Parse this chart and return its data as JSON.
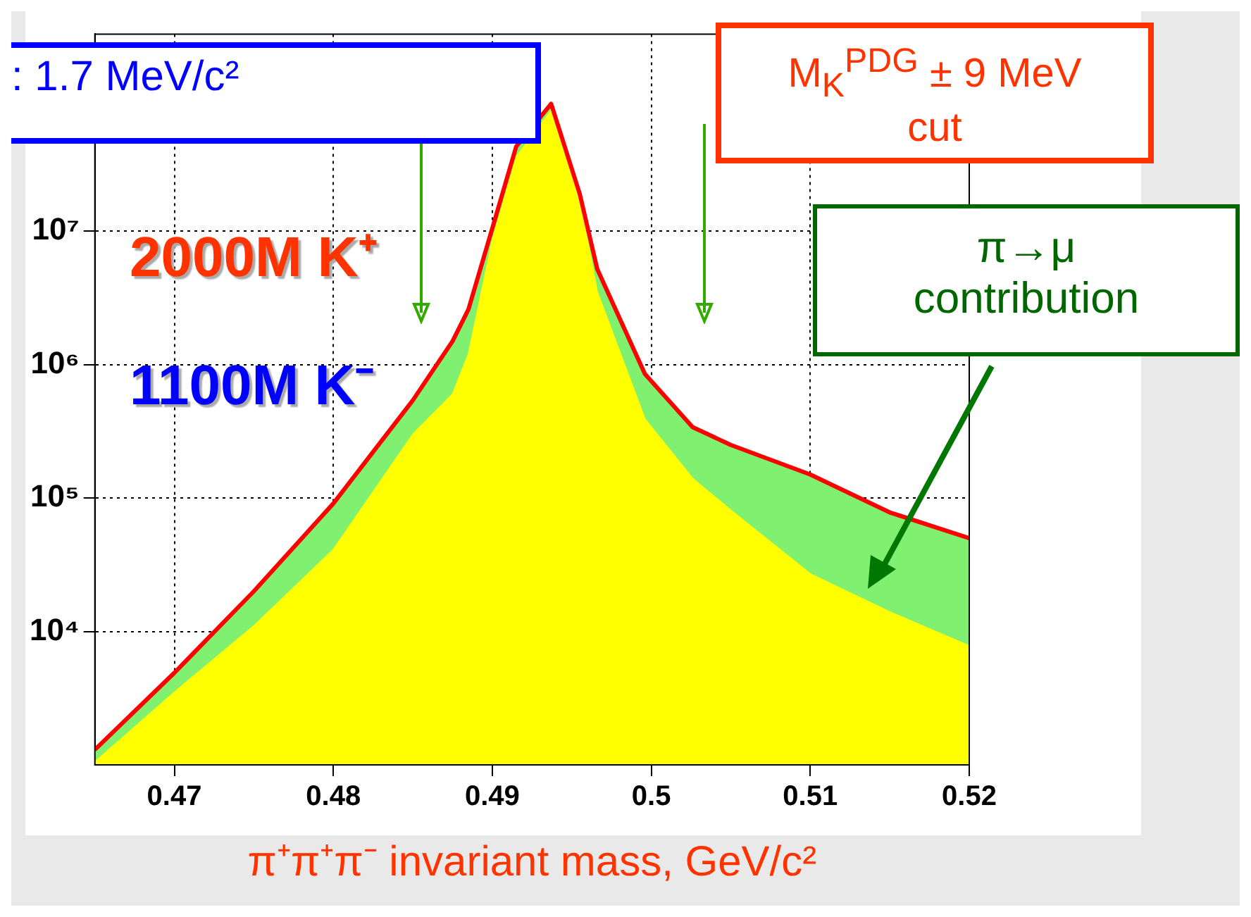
{
  "chart_data": {
    "type": "area",
    "xlabel": "π⁺π⁺π⁻ invariant mass, GeV/c²",
    "x": [
      0.465,
      0.47,
      0.475,
      0.48,
      0.485,
      0.4875,
      0.4885,
      0.49,
      0.4915,
      0.4937,
      0.4955,
      0.4966,
      0.4996,
      0.5026,
      0.505,
      0.51,
      0.515,
      0.52
    ],
    "series": [
      {
        "type": "line",
        "color": "#ff0000",
        "values": [
          1300,
          4900,
          20000,
          91000,
          540000,
          1500000,
          2600000,
          10500000,
          43000000,
          90000000,
          19000000,
          5200000,
          850000,
          340000,
          250000,
          150000,
          78000,
          50000
        ]
      },
      {
        "type": "area",
        "color": "#80f070",
        "values": [
          1300,
          4900,
          20000,
          91000,
          540000,
          1500000,
          2600000,
          10500000,
          43000000,
          90000000,
          19000000,
          5200000,
          850000,
          340000,
          250000,
          150000,
          78000,
          50000
        ]
      },
      {
        "type": "area",
        "color": "#ffff00",
        "values": [
          1050,
          3500,
          11000,
          41000,
          300000,
          600000,
          1200000,
          8500000,
          36000000,
          80000000,
          17000000,
          3500000,
          390000,
          140000,
          81000,
          27000,
          14000,
          7800
        ]
      }
    ],
    "xlim": [
      0.465,
      0.52
    ],
    "xticks": [
      0.47,
      0.48,
      0.49,
      0.5,
      0.51,
      0.52
    ],
    "ylim": [
      1000,
      300000000
    ],
    "yticks": [
      {
        "value": 10000,
        "label": "10⁴"
      },
      {
        "value": 100000,
        "label": "10⁵"
      },
      {
        "value": 1000000,
        "label": "10⁶"
      },
      {
        "value": 10000000,
        "label": "10⁷"
      }
    ],
    "log": "y",
    "grid": true,
    "legend": false,
    "annotations": [
      ": 1.7 MeV/c²",
      "M$_{K}$$^{PDG}$ ± 9 MeV cut",
      "π→μ contribution",
      "2000M K⁺",
      "1100M K⁻"
    ]
  }
}
